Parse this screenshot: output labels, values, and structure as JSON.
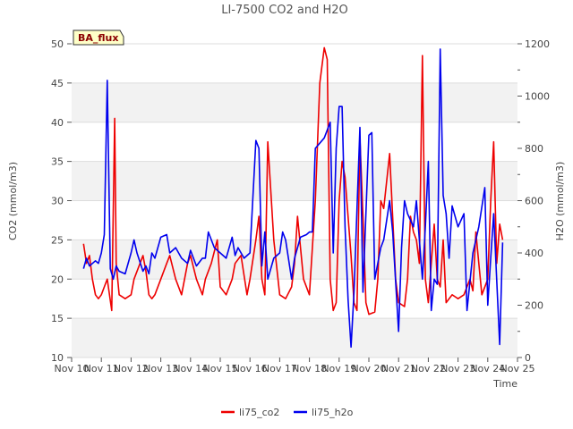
{
  "chart_data": {
    "type": "line",
    "title": "LI-7500 CO2 and H2O",
    "badge": "BA_flux",
    "xlabel": "Time",
    "ylabel": "CO2 (mmol/m3)",
    "y2label": "H2O (mmol/m3)",
    "x_ticks": [
      "Nov 10",
      "Nov 11",
      "Nov 12",
      "Nov 13",
      "Nov 14",
      "Nov 15",
      "Nov 16",
      "Nov 17",
      "Nov 18",
      "Nov 19",
      "Nov 20",
      "Nov 21",
      "Nov 22",
      "Nov 23",
      "Nov 24",
      "Nov 25"
    ],
    "xlim": [
      10,
      25
    ],
    "ylim": [
      10,
      50
    ],
    "y_ticks": [
      10,
      15,
      20,
      25,
      30,
      35,
      40,
      45,
      50
    ],
    "y2lim": [
      0,
      1200
    ],
    "y2_ticks": [
      0,
      200,
      400,
      600,
      800,
      1000,
      1200
    ],
    "grid": true,
    "legend_position": "bottom",
    "series": [
      {
        "name": "li75_co2",
        "axis": "left",
        "color": "#ee0000",
        "x": [
          10.4,
          10.5,
          10.6,
          10.7,
          10.8,
          10.9,
          11.0,
          11.1,
          11.2,
          11.35,
          11.45,
          11.5,
          11.6,
          11.8,
          12.0,
          12.1,
          12.3,
          12.4,
          12.5,
          12.6,
          12.7,
          12.8,
          13.0,
          13.2,
          13.3,
          13.5,
          13.7,
          13.9,
          14.0,
          14.2,
          14.4,
          14.5,
          14.7,
          14.9,
          15.0,
          15.2,
          15.4,
          15.5,
          15.7,
          15.9,
          16.0,
          16.2,
          16.3,
          16.4,
          16.5,
          16.6,
          16.8,
          17.0,
          17.2,
          17.4,
          17.5,
          17.6,
          17.8,
          18.0,
          18.2,
          18.35,
          18.5,
          18.6,
          18.7,
          18.8,
          18.9,
          19.0,
          19.1,
          19.2,
          19.4,
          19.5,
          19.6,
          19.7,
          19.8,
          19.9,
          20.0,
          20.2,
          20.3,
          20.4,
          20.5,
          20.7,
          20.9,
          21.0,
          21.2,
          21.3,
          21.4,
          21.5,
          21.6,
          21.7,
          21.8,
          21.9,
          22.0,
          22.2,
          22.3,
          22.4,
          22.5,
          22.6,
          22.8,
          23.0,
          23.2,
          23.4,
          23.5,
          23.6,
          23.7,
          23.8,
          24.0,
          24.1,
          24.2,
          24.3,
          24.4,
          24.5
        ],
        "y": [
          24.5,
          22.0,
          23.0,
          20.0,
          18.0,
          17.5,
          18.0,
          19.0,
          20.0,
          16.0,
          40.5,
          22.0,
          18.0,
          17.5,
          18.0,
          20.0,
          22.0,
          23.0,
          21.0,
          18.0,
          17.5,
          18.0,
          20.0,
          22.0,
          23.0,
          20.0,
          18.0,
          22.0,
          23.0,
          20.0,
          18.0,
          20.0,
          22.0,
          25.0,
          19.0,
          18.0,
          20.0,
          22.0,
          23.0,
          18.0,
          20.0,
          25.0,
          28.0,
          20.0,
          18.0,
          37.5,
          25.0,
          18.0,
          17.5,
          19.0,
          22.0,
          28.0,
          20.0,
          18.0,
          30.0,
          45.0,
          49.5,
          48.0,
          20.0,
          16.0,
          17.0,
          30.0,
          35.0,
          33.0,
          23.0,
          17.0,
          16.0,
          38.0,
          28.0,
          17.0,
          15.5,
          15.8,
          20.0,
          30.0,
          29.0,
          36.0,
          20.0,
          17.0,
          16.5,
          20.0,
          28.0,
          26.0,
          25.0,
          22.0,
          48.5,
          20.0,
          17.0,
          27.0,
          20.0,
          19.0,
          25.0,
          17.0,
          18.0,
          17.5,
          18.0,
          20.0,
          18.5,
          26.0,
          22.0,
          18.0,
          20.0,
          30.0,
          37.5,
          22.0,
          27.0,
          25.0
        ]
      },
      {
        "name": "li75_h2o",
        "axis": "right",
        "color": "#0000ee",
        "x": [
          10.4,
          10.5,
          10.6,
          10.8,
          10.9,
          11.0,
          11.1,
          11.2,
          11.3,
          11.4,
          11.5,
          11.6,
          11.8,
          12.0,
          12.1,
          12.2,
          12.4,
          12.5,
          12.6,
          12.7,
          12.8,
          13.0,
          13.2,
          13.3,
          13.5,
          13.7,
          13.9,
          14.0,
          14.2,
          14.4,
          14.5,
          14.6,
          14.8,
          15.0,
          15.2,
          15.4,
          15.5,
          15.6,
          15.8,
          16.0,
          16.2,
          16.3,
          16.4,
          16.5,
          16.6,
          16.8,
          17.0,
          17.1,
          17.2,
          17.4,
          17.5,
          17.7,
          17.9,
          18.0,
          18.1,
          18.2,
          18.5,
          18.7,
          18.8,
          18.9,
          19.0,
          19.1,
          19.2,
          19.3,
          19.4,
          19.5,
          19.7,
          19.8,
          20.0,
          20.1,
          20.2,
          20.4,
          20.5,
          20.7,
          20.8,
          21.0,
          21.1,
          21.2,
          21.3,
          21.5,
          21.6,
          21.7,
          21.8,
          21.9,
          22.0,
          22.1,
          22.2,
          22.3,
          22.4,
          22.5,
          22.6,
          22.7,
          22.8,
          23.0,
          23.2,
          23.3,
          23.5,
          23.7,
          23.9,
          24.0,
          24.1,
          24.2,
          24.4,
          24.5
        ],
        "y": [
          340,
          380,
          350,
          370,
          360,
          400,
          470,
          1060,
          340,
          300,
          350,
          330,
          320,
          400,
          450,
          400,
          330,
          350,
          320,
          400,
          380,
          460,
          470,
          400,
          420,
          380,
          360,
          410,
          350,
          380,
          380,
          480,
          420,
          400,
          380,
          460,
          390,
          420,
          380,
          400,
          830,
          800,
          350,
          480,
          300,
          380,
          400,
          480,
          450,
          300,
          380,
          460,
          470,
          480,
          480,
          800,
          840,
          900,
          400,
          800,
          960,
          960,
          500,
          220,
          40,
          250,
          880,
          250,
          850,
          860,
          300,
          420,
          450,
          600,
          480,
          100,
          420,
          600,
          550,
          500,
          600,
          450,
          300,
          500,
          750,
          180,
          300,
          280,
          1180,
          620,
          550,
          380,
          580,
          500,
          550,
          180,
          400,
          500,
          650,
          200,
          380,
          550,
          50,
          440
        ]
      }
    ]
  }
}
